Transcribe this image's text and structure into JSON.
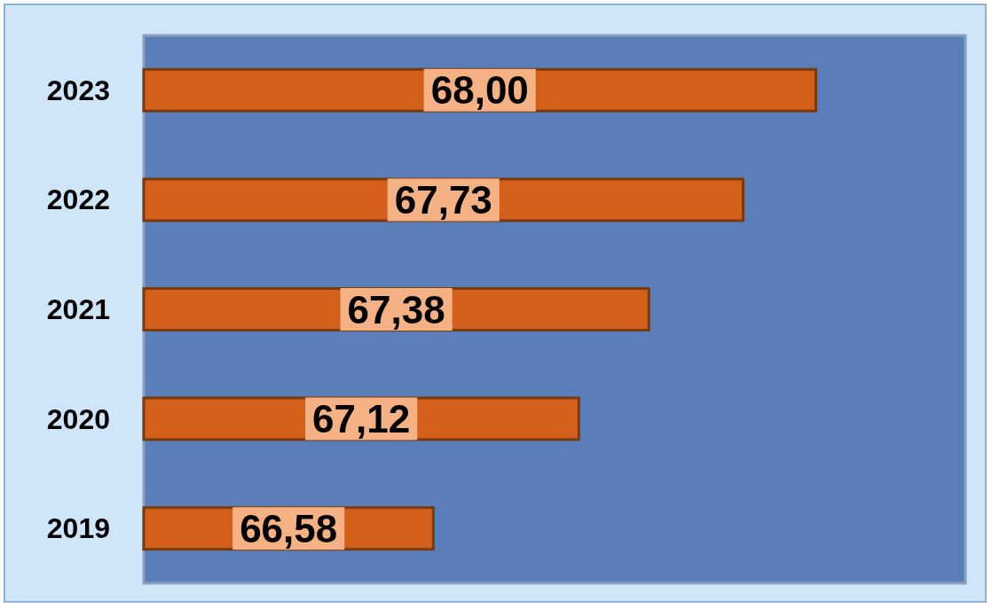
{
  "chart_data": {
    "type": "bar",
    "orientation": "horizontal",
    "categories": [
      "2023",
      "2022",
      "2021",
      "2020",
      "2019"
    ],
    "values": [
      68.0,
      67.73,
      67.38,
      67.12,
      66.58
    ],
    "value_labels": [
      "68,00",
      "67,73",
      "67,38",
      "67,12",
      "66,58"
    ],
    "color": "#d2601a",
    "xlim": [
      65.5,
      68.55
    ],
    "tick_labels": "y"
  }
}
